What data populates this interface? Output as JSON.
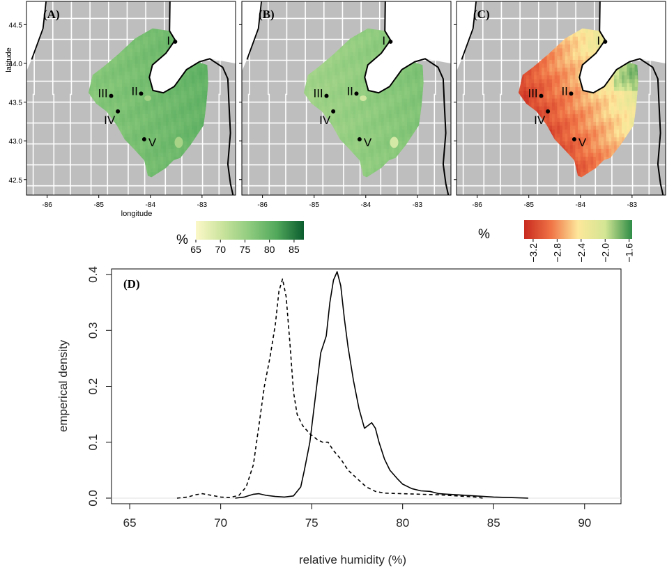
{
  "maps": {
    "panels": [
      {
        "label": "(A)",
        "variant": "A"
      },
      {
        "label": "(B)",
        "variant": "B"
      },
      {
        "label": "(C)",
        "variant": "C"
      }
    ],
    "xlabel": "longitude",
    "ylabel": "latitude",
    "lon_ticks": [
      -86,
      -85,
      -84,
      -83
    ],
    "lon_tick_labels": [
      "-86",
      "-85",
      "-84",
      "-83"
    ],
    "lat_ticks": [
      42.5,
      43.0,
      43.5,
      44.0,
      44.5
    ],
    "lat_tick_labels": [
      "42.5",
      "43.0",
      "43.5",
      "44.0",
      "44.5"
    ],
    "lon_range": [
      -86.4,
      -82.35
    ],
    "lat_range": [
      42.3,
      44.8
    ],
    "sites": [
      {
        "id": "I",
        "lon": -83.52,
        "lat": 44.28
      },
      {
        "id": "II",
        "lon": -84.18,
        "lat": 43.61
      },
      {
        "id": "III",
        "lon": -84.76,
        "lat": 43.58
      },
      {
        "id": "IV",
        "lon": -84.63,
        "lat": 43.38
      },
      {
        "id": "V",
        "lon": -84.12,
        "lat": 43.02
      }
    ]
  },
  "legends": {
    "humidity": {
      "unit": "%",
      "range": [
        65,
        87
      ],
      "ticks": [
        "65",
        "70",
        "75",
        "80",
        "85"
      ],
      "colors": [
        "#fcf8c8",
        "#c9e39c",
        "#8ecb7e",
        "#51a85b",
        "#0b5c2e"
      ]
    },
    "change": {
      "unit": "%",
      "range": [
        -3.35,
        -1.55
      ],
      "ticks": [
        "-3.2",
        "-2.8",
        "-2.4",
        "-2.0",
        "-1.6"
      ],
      "colors": [
        "#c82a1f",
        "#f07446",
        "#fde79a",
        "#d3e694",
        "#2e8c46"
      ]
    }
  },
  "chart_data": {
    "type": "line",
    "panel_label": "(D)",
    "xlabel": "relative humidity (%)",
    "ylabel": "emperical density",
    "xlim": [
      64,
      92
    ],
    "ylim": [
      -0.01,
      0.41
    ],
    "xticks": [
      "65",
      "70",
      "75",
      "80",
      "85",
      "90"
    ],
    "yticks": [
      "0.0",
      "0.1",
      "0.2",
      "0.3",
      "0.4"
    ],
    "series": [
      {
        "name": "solid",
        "style": "solid",
        "x": [
          70.8,
          71.3,
          71.8,
          72.1,
          72.5,
          73.0,
          73.5,
          74.0,
          74.4,
          74.6,
          74.9,
          75.2,
          75.5,
          75.8,
          76.0,
          76.2,
          76.4,
          76.6,
          76.8,
          77.0,
          77.3,
          77.6,
          77.9,
          78.1,
          78.3,
          78.5,
          78.7,
          79.0,
          79.3,
          79.7,
          80.0,
          80.5,
          81.0,
          81.5,
          82.0,
          82.5,
          83.0,
          84.0,
          85.0,
          86.0,
          86.9
        ],
        "y": [
          0.0,
          0.002,
          0.007,
          0.008,
          0.005,
          0.003,
          0.002,
          0.004,
          0.02,
          0.05,
          0.1,
          0.18,
          0.26,
          0.29,
          0.35,
          0.39,
          0.405,
          0.38,
          0.32,
          0.27,
          0.21,
          0.16,
          0.125,
          0.13,
          0.135,
          0.125,
          0.1,
          0.07,
          0.05,
          0.035,
          0.025,
          0.017,
          0.013,
          0.012,
          0.008,
          0.007,
          0.006,
          0.004,
          0.002,
          0.001,
          0.0
        ]
      },
      {
        "name": "dashed",
        "style": "dashed",
        "x": [
          67.6,
          68.2,
          68.6,
          69.0,
          69.5,
          70.0,
          70.5,
          71.0,
          71.4,
          71.8,
          72.1,
          72.4,
          72.7,
          73.0,
          73.2,
          73.4,
          73.6,
          73.8,
          74.0,
          74.2,
          74.5,
          74.9,
          75.3,
          75.6,
          75.9,
          76.2,
          76.6,
          77.0,
          77.5,
          78.0,
          78.5,
          79.0,
          80.0,
          81.0,
          82.0,
          83.0,
          84.0,
          84.4
        ],
        "y": [
          0.0,
          0.002,
          0.006,
          0.008,
          0.005,
          0.002,
          0.001,
          0.005,
          0.02,
          0.06,
          0.13,
          0.2,
          0.25,
          0.31,
          0.37,
          0.392,
          0.36,
          0.28,
          0.19,
          0.15,
          0.13,
          0.115,
          0.105,
          0.1,
          0.1,
          0.085,
          0.07,
          0.05,
          0.035,
          0.02,
          0.012,
          0.009,
          0.008,
          0.007,
          0.006,
          0.004,
          0.002,
          0.0
        ]
      }
    ]
  }
}
